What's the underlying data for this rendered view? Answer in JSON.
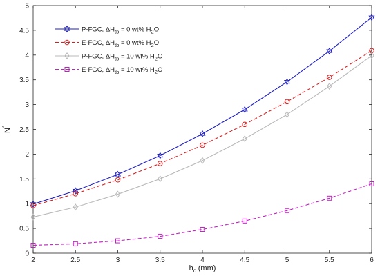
{
  "chart_data": {
    "type": "line",
    "xlabel_main": "h",
    "xlabel_sub": "c",
    "xlabel_unit": " (mm)",
    "ylabel_main": "N",
    "ylabel_sup": "*",
    "xlim": [
      2,
      6
    ],
    "ylim": [
      0,
      5
    ],
    "xticks": [
      2,
      2.5,
      3,
      3.5,
      4,
      4.5,
      5,
      5.5,
      6
    ],
    "yticks": [
      0,
      0.5,
      1,
      1.5,
      2,
      2.5,
      3,
      3.5,
      4,
      4.5,
      5
    ],
    "grid": false,
    "legend_position": "top-left",
    "x": [
      2,
      2.5,
      3,
      3.5,
      4,
      4.5,
      5,
      5.5,
      6
    ],
    "series": [
      {
        "legend_prefix": "P-FGC,  ΔH",
        "legend_sub": "tb",
        "legend_mid": " = 0 wt% H",
        "legend_sub2": "2",
        "legend_suffix": "O",
        "color": "#1f1fbf",
        "dash": "solid",
        "marker": "hexagram",
        "values": [
          0.99,
          1.26,
          1.59,
          1.97,
          2.41,
          2.9,
          3.46,
          4.08,
          4.76
        ]
      },
      {
        "legend_prefix": "E-FGC,  ΔH",
        "legend_sub": "tb",
        "legend_mid": " = 0 wt% H",
        "legend_sub2": "2",
        "legend_suffix": "O",
        "color": "#d62020",
        "dash": "dashed",
        "marker": "circle",
        "values": [
          0.96,
          1.2,
          1.48,
          1.81,
          2.18,
          2.6,
          3.06,
          3.55,
          4.09
        ]
      },
      {
        "legend_prefix": "P-FGC,  ΔH",
        "legend_sub": "tb",
        "legend_mid": " = 10 wt% H",
        "legend_sub2": "2",
        "legend_suffix": "O",
        "color": "#b8b8b8",
        "dash": "solid",
        "marker": "diamond",
        "values": [
          0.73,
          0.93,
          1.19,
          1.5,
          1.87,
          2.31,
          2.8,
          3.37,
          3.99
        ]
      },
      {
        "legend_prefix": "E-FGC,  ΔH",
        "legend_sub": "tb",
        "legend_mid": " = 10 wt% H",
        "legend_sub2": "2",
        "legend_suffix": "O",
        "color": "#c020c0",
        "dash": "dashed",
        "marker": "square",
        "values": [
          0.16,
          0.19,
          0.25,
          0.34,
          0.48,
          0.65,
          0.86,
          1.11,
          1.4
        ]
      }
    ]
  }
}
